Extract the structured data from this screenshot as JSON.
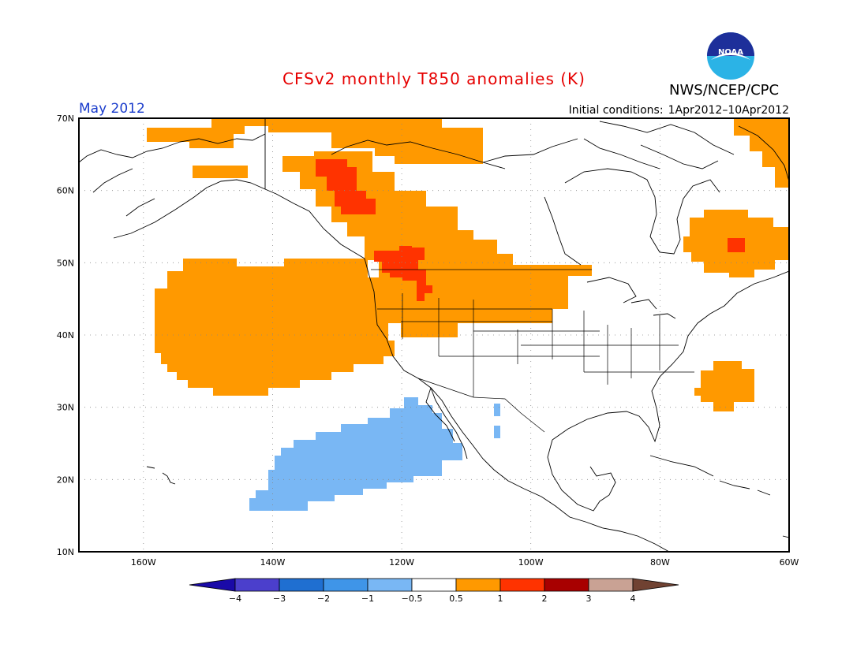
{
  "header": {
    "title": "CFSv2 monthly T850 anomalies (K)",
    "organization": "NWS/NCEP/CPC",
    "period": "May 2012",
    "initial_label": "Initial conditions:",
    "initial_range": "1Apr2012–10Apr2012"
  },
  "logo": {
    "name": "noaa-logo",
    "text": "NOAA"
  },
  "map": {
    "lat_ticks": [
      "70N",
      "60N",
      "50N",
      "40N",
      "30N",
      "20N",
      "10N"
    ],
    "lon_ticks": [
      "160W",
      "140W",
      "120W",
      "100W",
      "80W",
      "60W"
    ],
    "extent": {
      "lon": [
        -170,
        -60
      ],
      "lat": [
        10,
        70
      ]
    }
  },
  "colorbar": {
    "levels": [
      "−4",
      "−3",
      "−2",
      "−1",
      "−0.5",
      "0.5",
      "1",
      "2",
      "3",
      "4"
    ],
    "colors": [
      "#1a0aa8",
      "#4b3fcc",
      "#1f6fd1",
      "#3f95e8",
      "#79b7f4",
      "#ffffff",
      "#ff9900",
      "#ff3300",
      "#a80000",
      "#c9a294",
      "#704232"
    ]
  },
  "anomaly_colors": {
    "warm_1": "#ff9900",
    "warm_2": "#ff3300",
    "cool_1": "#79b7f4"
  }
}
